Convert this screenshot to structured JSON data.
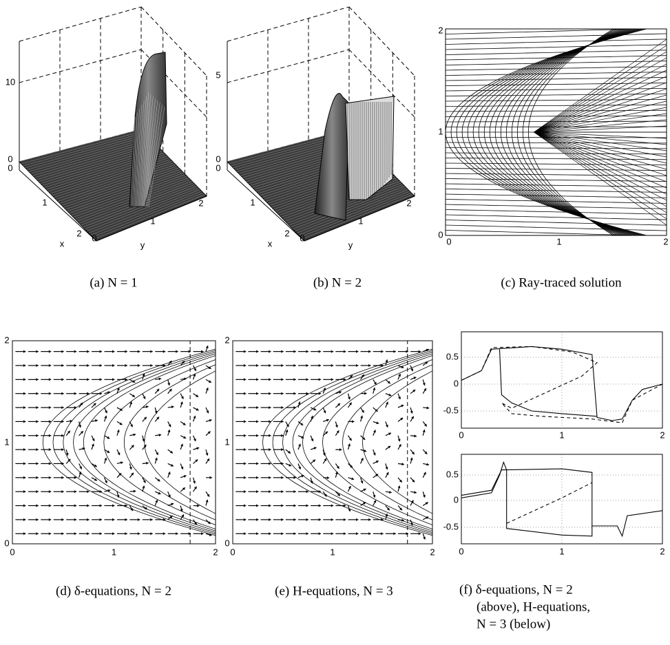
{
  "panels": [
    {
      "caption": "(a) N = 1",
      "z_ticks": [
        "10",
        "0"
      ],
      "x_ticks": [
        "0",
        "1",
        "2"
      ],
      "y_ticks": [
        "0",
        "1",
        "2"
      ],
      "x_label": "x",
      "y_label": "y"
    },
    {
      "caption": "(b) N = 2",
      "z_ticks": [
        "5",
        "0"
      ],
      "x_ticks": [
        "0",
        "1",
        "2"
      ],
      "y_ticks": [
        "0",
        "1",
        "2"
      ],
      "x_label": "x",
      "y_label": "y"
    },
    {
      "caption": "(c) Ray-traced solution",
      "x_ticks": [
        "0",
        "1",
        "2"
      ],
      "y_ticks": [
        "0",
        "1",
        "2"
      ]
    },
    {
      "caption": "(d) δ-equations, N = 2",
      "x_ticks": [
        "0",
        "1",
        "2"
      ],
      "y_ticks": [
        "0",
        "1",
        "2"
      ]
    },
    {
      "caption": "(e) H-equations, N = 3",
      "x_ticks": [
        "0",
        "1",
        "2"
      ],
      "y_ticks": [
        "0",
        "1",
        "2"
      ]
    },
    {
      "caption_lines": [
        "(f) δ-equations, N = 2",
        "(above), H-equations,",
        "N = 3 (below)"
      ],
      "x_ticks": [
        "0",
        "1",
        "2"
      ],
      "y_ticks": [
        "0.5",
        "0",
        "-0.5"
      ]
    }
  ]
}
